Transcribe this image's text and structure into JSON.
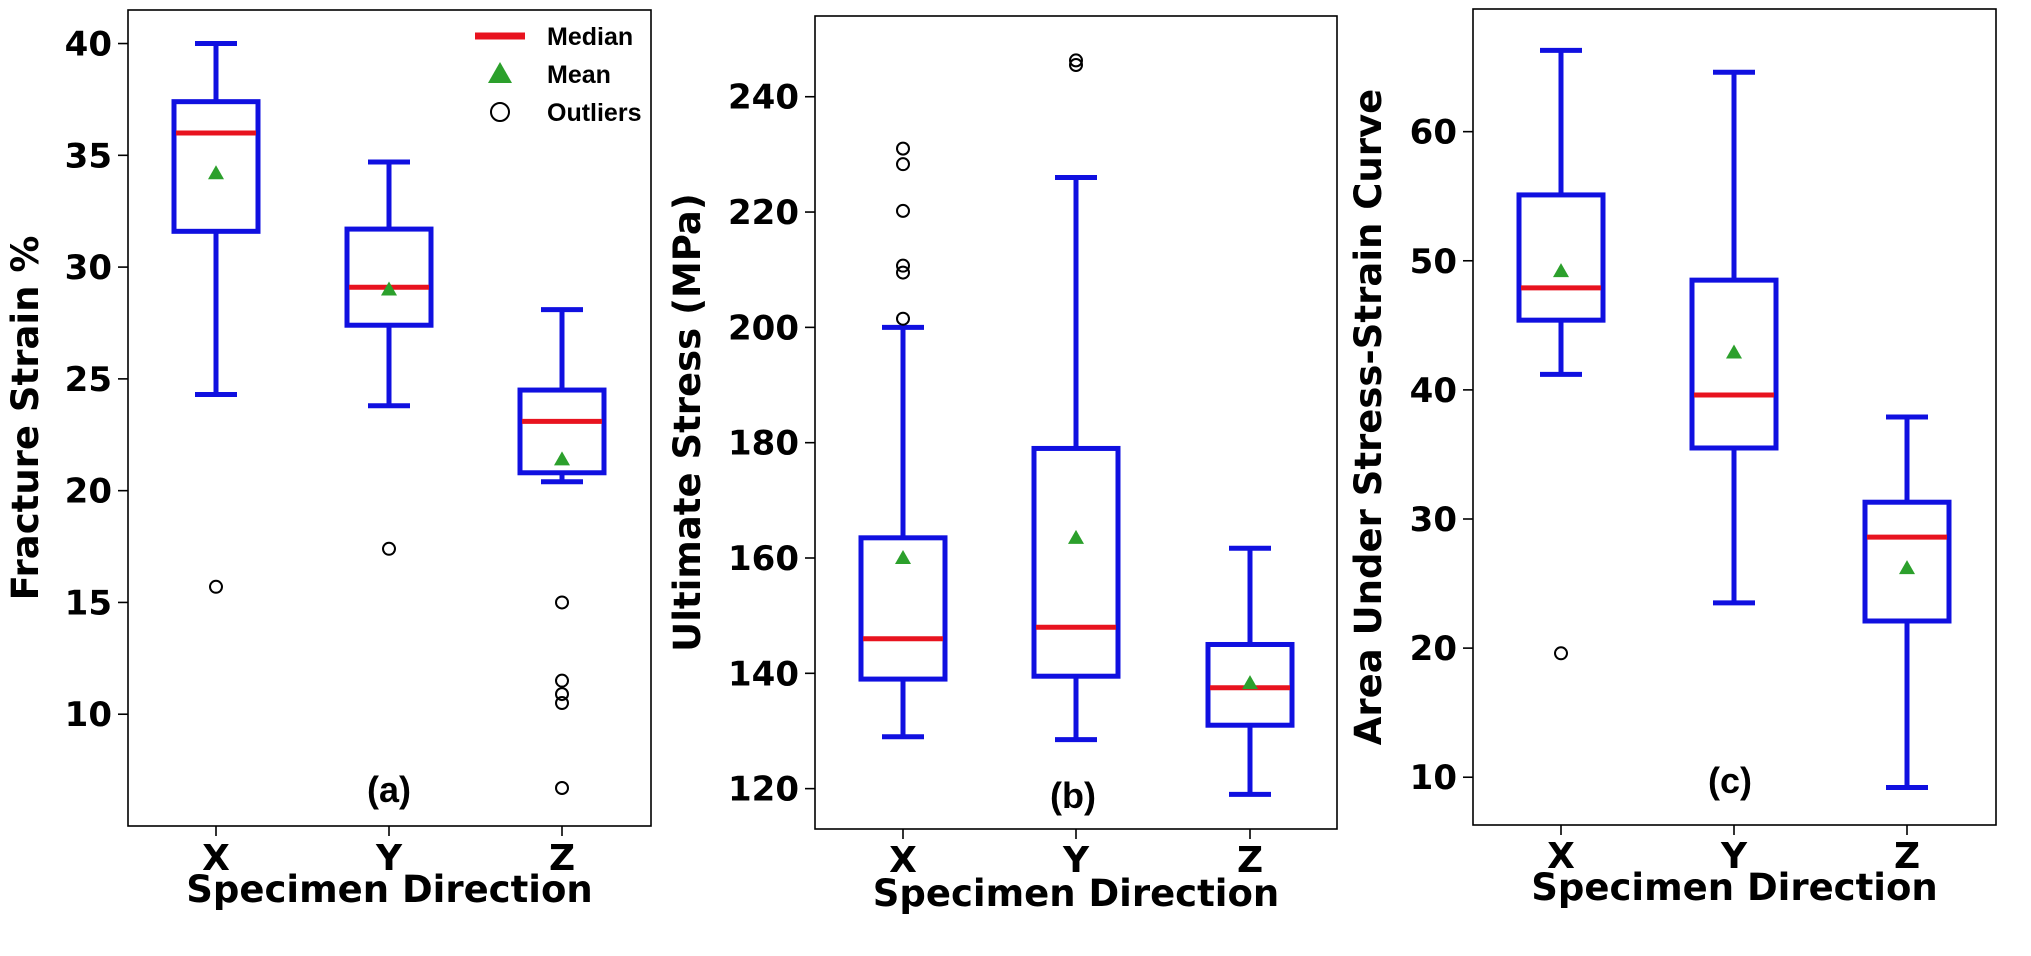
{
  "chart_data": [
    {
      "type": "box",
      "panel_label": "(a)",
      "xlabel": "Specimen Direction",
      "ylabel": "Fracture Strain %",
      "ylim": [
        5,
        41.5
      ],
      "yticks": [
        10,
        15,
        20,
        25,
        30,
        35,
        40
      ],
      "categories": [
        "X",
        "Y",
        "Z"
      ],
      "boxes": [
        {
          "category": "X",
          "whisker_low": 24.3,
          "q1": 31.6,
          "median": 36.0,
          "q3": 37.4,
          "whisker_high": 40.0,
          "mean": 34.2,
          "outliers": [
            15.7
          ]
        },
        {
          "category": "Y",
          "whisker_low": 23.8,
          "q1": 27.4,
          "median": 29.1,
          "q3": 31.7,
          "whisker_high": 34.7,
          "mean": 29.0,
          "outliers": [
            17.4
          ]
        },
        {
          "category": "Z",
          "whisker_low": 20.4,
          "q1": 20.8,
          "median": 23.1,
          "q3": 24.5,
          "whisker_high": 28.1,
          "mean": 21.4,
          "outliers": [
            15.0,
            11.5,
            10.9,
            10.5,
            6.7
          ]
        }
      ],
      "legend": {
        "position": "top-right",
        "entries": [
          {
            "label": "Median",
            "marker": "line"
          },
          {
            "label": "Mean",
            "marker": "triangle"
          },
          {
            "label": "Outliers",
            "marker": "circle"
          }
        ]
      }
    },
    {
      "type": "box",
      "panel_label": "(b)",
      "xlabel": "Specimen Direction",
      "ylabel": "Ultimate Stress (MPa)",
      "ylim": [
        113,
        254
      ],
      "yticks": [
        120,
        140,
        160,
        180,
        200,
        220,
        240
      ],
      "categories": [
        "X",
        "Y",
        "Z"
      ],
      "boxes": [
        {
          "category": "X",
          "whisker_low": 129,
          "q1": 139,
          "median": 146,
          "q3": 163.5,
          "whisker_high": 200,
          "mean": 160,
          "outliers": [
            201.5,
            209.5,
            210.7,
            220.2,
            228.3,
            231.0
          ]
        },
        {
          "category": "Y",
          "whisker_low": 128.5,
          "q1": 139.5,
          "median": 148,
          "q3": 179,
          "whisker_high": 226,
          "mean": 163.5,
          "outliers": [
            245.5,
            246.3
          ]
        },
        {
          "category": "Z",
          "whisker_low": 119,
          "q1": 131,
          "median": 137.5,
          "q3": 145,
          "whisker_high": 161.7,
          "mean": 138.3,
          "outliers": []
        }
      ]
    },
    {
      "type": "box",
      "panel_label": "(c)",
      "xlabel": "Specimen Direction",
      "ylabel": "Area Under Stress-Strain Curve",
      "ylim": [
        6.3,
        69.5
      ],
      "yticks": [
        10,
        20,
        30,
        40,
        50,
        60
      ],
      "categories": [
        "X",
        "Y",
        "Z"
      ],
      "boxes": [
        {
          "category": "X",
          "whisker_low": 41.2,
          "q1": 45.4,
          "median": 47.9,
          "q3": 55.1,
          "whisker_high": 66.3,
          "mean": 49.2,
          "outliers": [
            19.6
          ]
        },
        {
          "category": "Y",
          "whisker_low": 23.5,
          "q1": 35.5,
          "median": 39.6,
          "q3": 48.5,
          "whisker_high": 64.6,
          "mean": 42.9,
          "outliers": []
        },
        {
          "category": "Z",
          "whisker_low": 9.2,
          "q1": 22.1,
          "median": 28.6,
          "q3": 31.3,
          "whisker_high": 37.9,
          "mean": 26.2,
          "outliers": []
        }
      ]
    }
  ],
  "colors": {
    "box": "#1010e0",
    "median": "#e8131f",
    "mean": "#2ca02c",
    "outlier": "#000000"
  }
}
